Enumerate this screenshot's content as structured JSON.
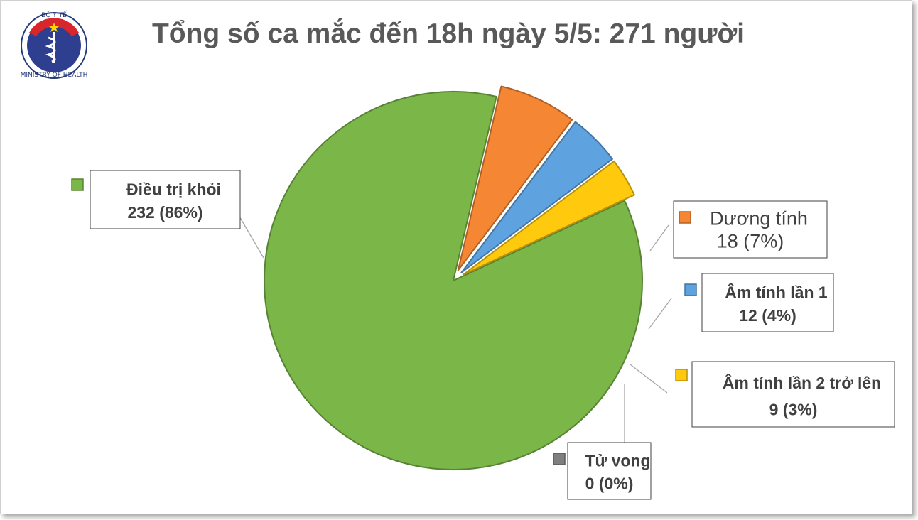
{
  "header": {
    "logo_top_text": "BỘ Y TẾ",
    "logo_bottom_text": "MINISTRY OF HEALTH"
  },
  "chart_data": {
    "type": "pie",
    "title": "Tổng số ca mắc đến 18h ngày 5/5: 271 người",
    "slices": [
      {
        "key": "dieu-tri-khoi",
        "name": "Điều trị khỏi",
        "value": 232,
        "label_value": "232 (86%)",
        "color": "#7ab648",
        "explode": false
      },
      {
        "key": "duong-tinh",
        "name": "Dương tính",
        "value": 18,
        "label_value": "18 (7%)",
        "color": "#f58634",
        "explode": true
      },
      {
        "key": "am-tinh-lan-1",
        "name": "Âm tính lần 1",
        "value": 12,
        "label_value": "12 (4%)",
        "color": "#5ea3e0",
        "explode": true
      },
      {
        "key": "am-tinh-lan-2",
        "name": "Âm tính lần 2 trở lên",
        "value": 9,
        "label_value": "9 (3%)",
        "color": "#ffc90e",
        "explode": true
      },
      {
        "key": "tu-vong",
        "name": "Tử vong",
        "value": 0,
        "label_value": "0 (0%)",
        "color": "#7f7f7f",
        "explode": true
      }
    ],
    "start_angle_deg": -25,
    "direction": "clockwise",
    "legend": "none"
  }
}
